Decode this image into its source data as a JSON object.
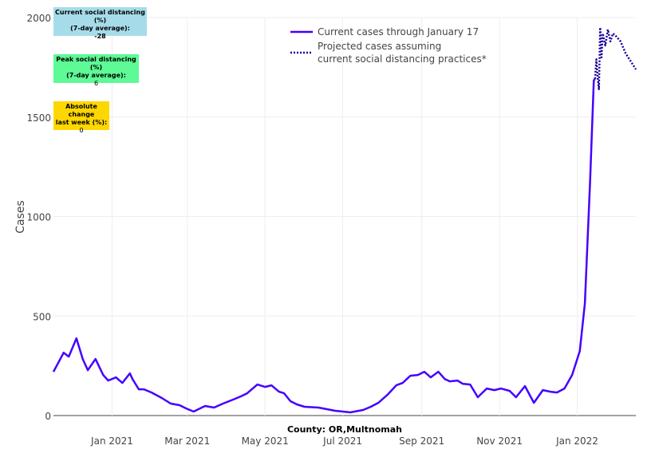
{
  "chart_data": {
    "type": "line",
    "title": "",
    "xlabel": "County: OR,Multnomah",
    "ylabel": "Cases",
    "x_unit": "days since 2021-01-01",
    "xlim": [
      -46,
      411
    ],
    "ylim": [
      0,
      2000
    ],
    "grid": true,
    "legend_position": "top-center",
    "y_ticks": [
      0,
      500,
      1000,
      1500,
      2000
    ],
    "x_ticks": [
      {
        "day": 0,
        "label": "Jan 2021"
      },
      {
        "day": 59,
        "label": "Mar 2021"
      },
      {
        "day": 120,
        "label": "May 2021"
      },
      {
        "day": 181,
        "label": "Jul 2021"
      },
      {
        "day": 243,
        "label": "Sep 2021"
      },
      {
        "day": 304,
        "label": "Nov 2021"
      },
      {
        "day": 365,
        "label": "Jan 2022"
      }
    ],
    "series": [
      {
        "name": "Current cases through January 17",
        "color": "#4400ff",
        "style": "solid",
        "x": [
          -46,
          -38,
          -34,
          -28,
          -23,
          -19,
          -13,
          -7,
          -3,
          3,
          8,
          14,
          16,
          21,
          25,
          31,
          39,
          46,
          53,
          58,
          64,
          73,
          80,
          87,
          95,
          101,
          106,
          114,
          120,
          125,
          131,
          135,
          140,
          145,
          151,
          162,
          175,
          187,
          197,
          203,
          209,
          216,
          223,
          228,
          234,
          240,
          245,
          250,
          256,
          261,
          265,
          271,
          275,
          281,
          287,
          294,
          300,
          305,
          312,
          317,
          324,
          331,
          338,
          344,
          349,
          355,
          361,
          367,
          371,
          375,
          378,
          379
        ],
        "y": [
          220,
          316,
          296,
          388,
          284,
          228,
          284,
          204,
          176,
          192,
          164,
          212,
          184,
          132,
          132,
          116,
          88,
          60,
          52,
          36,
          20,
          48,
          40,
          60,
          80,
          96,
          112,
          156,
          144,
          152,
          120,
          112,
          72,
          56,
          44,
          40,
          24,
          16,
          28,
          44,
          64,
          104,
          152,
          164,
          200,
          204,
          220,
          192,
          220,
          184,
          172,
          176,
          160,
          156,
          92,
          136,
          128,
          136,
          124,
          92,
          148,
          64,
          128,
          120,
          116,
          136,
          204,
          324,
          564,
          1164,
          1684,
          1692
        ]
      },
      {
        "name": "Projected cases assuming current social distancing practices*",
        "color": "#1a0099",
        "style": "dotted",
        "x": [
          379,
          380,
          381,
          382,
          383,
          384,
          385,
          387,
          389,
          391,
          393,
          395,
          399,
          403,
          408,
          411
        ],
        "y": [
          1692,
          1790,
          1700,
          1640,
          1950,
          1800,
          1920,
          1860,
          1940,
          1880,
          1920,
          1910,
          1880,
          1820,
          1770,
          1740
        ]
      }
    ],
    "legend": [
      "Current cases through January 17",
      "Projected cases assuming",
      "current social distancing practices*"
    ]
  },
  "annotations": [
    {
      "title1": "Current social distancing (%)",
      "title2": "(7-day average):",
      "value": "-28",
      "color": "#a6dcea"
    },
    {
      "title1": "Peak social distancing (%)",
      "title2": "(7-day average):",
      "value": "6",
      "color": "#5dfa96"
    },
    {
      "title1": "Absolute change",
      "title2": "last week (%):",
      "value": "0",
      "color": "#ffd700"
    }
  ]
}
